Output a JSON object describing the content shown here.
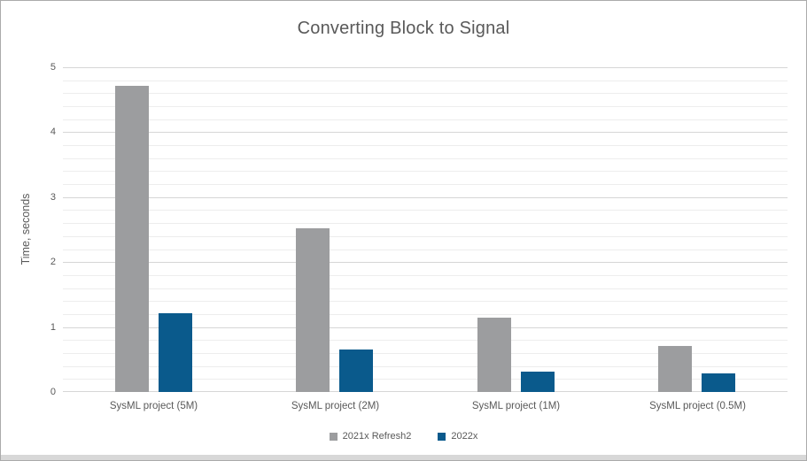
{
  "chart_data": {
    "type": "bar",
    "title": "Converting Block to Signal",
    "xlabel": "",
    "ylabel": "Time, seconds",
    "categories": [
      "SysML project (5M)",
      "SysML project (2M)",
      "SysML project (1M)",
      "SysML project (0.5M)"
    ],
    "series": [
      {
        "name": "2021x Refresh2",
        "color": "#9c9d9f",
        "values": [
          4.72,
          2.52,
          1.14,
          0.71
        ]
      },
      {
        "name": "2022x",
        "color": "#0a5a8c",
        "values": [
          1.21,
          0.65,
          0.32,
          0.28
        ]
      }
    ],
    "ylim": [
      0,
      5
    ],
    "y_major_step": 1,
    "y_minor_step": 0.2,
    "y_tick_labels": [
      "0",
      "1",
      "2",
      "3",
      "4",
      "5"
    ],
    "grid": true,
    "legend_position": "bottom"
  },
  "colors": {
    "text": "#595959",
    "major_grid": "#d6d6d6",
    "minor_grid": "#ededed",
    "background": "#ffffff",
    "window_border": "#ababab",
    "bottom_strip": "#d8d8d8"
  }
}
